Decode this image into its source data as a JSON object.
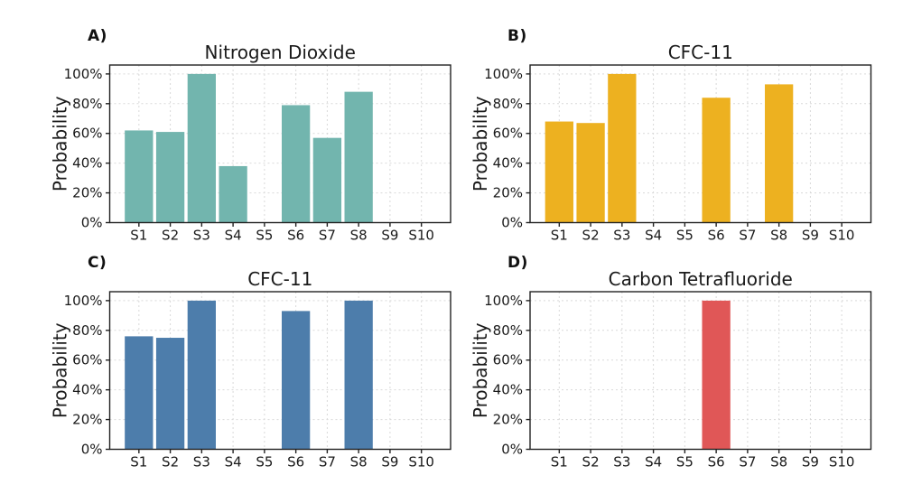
{
  "figure": {
    "background": "#ffffff",
    "spine_color": "#222222",
    "grid_color": "#d9d9d9",
    "text_color": "#1a1a1a"
  },
  "chart_data": [
    {
      "type": "bar",
      "panel_label": "A)",
      "title": "Nitrogen Dioxide",
      "categories": [
        "S1",
        "S2",
        "S3",
        "S4",
        "S5",
        "S6",
        "S7",
        "S8",
        "S9",
        "S10"
      ],
      "values": [
        62,
        61,
        100,
        38,
        0,
        79,
        57,
        88,
        0,
        0
      ],
      "xlabel": "",
      "ylabel": "Probability",
      "yticks": [
        0,
        20,
        40,
        60,
        80,
        100
      ],
      "ytick_labels": [
        "0%",
        "20%",
        "40%",
        "60%",
        "80%",
        "100%"
      ],
      "ylim": [
        0,
        106
      ],
      "grid": true,
      "legend": "none",
      "bar_color": "#72b5ae"
    },
    {
      "type": "bar",
      "panel_label": "B)",
      "title": "CFC-11",
      "categories": [
        "S1",
        "S2",
        "S3",
        "S4",
        "S5",
        "S6",
        "S7",
        "S8",
        "S9",
        "S10"
      ],
      "values": [
        68,
        67,
        100,
        0,
        0,
        84,
        0,
        93,
        0,
        0
      ],
      "xlabel": "",
      "ylabel": "Probability",
      "yticks": [
        0,
        20,
        40,
        60,
        80,
        100
      ],
      "ytick_labels": [
        "0%",
        "20%",
        "40%",
        "60%",
        "80%",
        "100%"
      ],
      "ylim": [
        0,
        106
      ],
      "grid": true,
      "legend": "none",
      "bar_color": "#edb120"
    },
    {
      "type": "bar",
      "panel_label": "C)",
      "title": "CFC-11",
      "categories": [
        "S1",
        "S2",
        "S3",
        "S4",
        "S5",
        "S6",
        "S7",
        "S8",
        "S9",
        "S10"
      ],
      "values": [
        76,
        75,
        100,
        0,
        0,
        93,
        0,
        100,
        0,
        0
      ],
      "xlabel": "",
      "ylabel": "Probability",
      "yticks": [
        0,
        20,
        40,
        60,
        80,
        100
      ],
      "ytick_labels": [
        "0%",
        "20%",
        "40%",
        "60%",
        "80%",
        "100%"
      ],
      "ylim": [
        0,
        106
      ],
      "grid": true,
      "legend": "none",
      "bar_color": "#4d7dab"
    },
    {
      "type": "bar",
      "panel_label": "D)",
      "title": "Carbon Tetrafluoride",
      "categories": [
        "S1",
        "S2",
        "S3",
        "S4",
        "S5",
        "S6",
        "S7",
        "S8",
        "S9",
        "S10"
      ],
      "values": [
        0,
        0,
        0,
        0,
        0,
        100,
        0,
        0,
        0,
        0
      ],
      "xlabel": "",
      "ylabel": "Probability",
      "yticks": [
        0,
        20,
        40,
        60,
        80,
        100
      ],
      "ytick_labels": [
        "0%",
        "20%",
        "40%",
        "60%",
        "80%",
        "100%"
      ],
      "ylim": [
        0,
        106
      ],
      "grid": true,
      "legend": "none",
      "bar_color": "#e05757"
    }
  ]
}
